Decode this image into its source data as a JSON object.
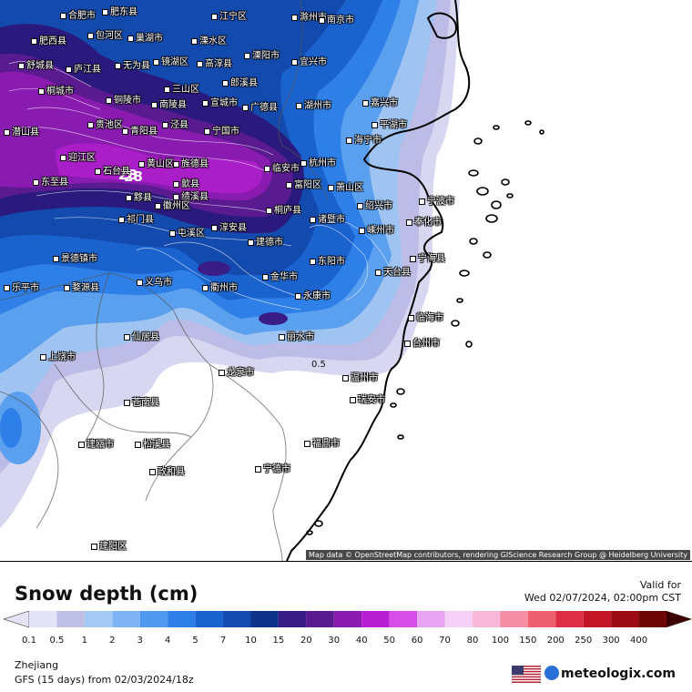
{
  "map": {
    "attribution": "Map data © OpenStreetMap contributors, rendering GIScience Research Group @ Heidelberg University",
    "contour_labels": [
      "28",
      "28",
      "0.5"
    ],
    "cities": [
      {
        "name": "合肥市"
      },
      {
        "name": "肥东县"
      },
      {
        "name": "滁州市"
      },
      {
        "name": "南京市"
      },
      {
        "name": "江宁区"
      },
      {
        "name": "肥西县"
      },
      {
        "name": "包河区"
      },
      {
        "name": "巢湖市"
      },
      {
        "name": "溧水区"
      },
      {
        "name": "溧阳市"
      },
      {
        "name": "舒城县"
      },
      {
        "name": "庐江县"
      },
      {
        "name": "无为县"
      },
      {
        "name": "镜湖区"
      },
      {
        "name": "高淳县"
      },
      {
        "name": "宜兴市"
      },
      {
        "name": "桐城市"
      },
      {
        "name": "铜陵市"
      },
      {
        "name": "三山区"
      },
      {
        "name": "郎溪县"
      },
      {
        "name": "南陵县"
      },
      {
        "name": "宣城市"
      },
      {
        "name": "广德县"
      },
      {
        "name": "湖州市"
      },
      {
        "name": "嘉兴市"
      },
      {
        "name": "潜山县"
      },
      {
        "name": "贵池区"
      },
      {
        "name": "青阳县"
      },
      {
        "name": "泾县"
      },
      {
        "name": "宁国市"
      },
      {
        "name": "杭州市"
      },
      {
        "name": "海宁市"
      },
      {
        "name": "平湖市"
      },
      {
        "name": "迎江区"
      },
      {
        "name": "石台县"
      },
      {
        "name": "黄山区"
      },
      {
        "name": "旌德县"
      },
      {
        "name": "临安市"
      },
      {
        "name": "萧山区"
      },
      {
        "name": "东至县"
      },
      {
        "name": "黟县"
      },
      {
        "name": "祁门县"
      },
      {
        "name": "歙县"
      },
      {
        "name": "绩溪县"
      },
      {
        "name": "富阳区"
      },
      {
        "name": "绍兴市"
      },
      {
        "name": "宁波市"
      },
      {
        "name": "徽州区"
      },
      {
        "name": "屯溪区"
      },
      {
        "name": "淳安县"
      },
      {
        "name": "桐庐县"
      },
      {
        "name": "诸暨市"
      },
      {
        "name": "嵊州市"
      },
      {
        "name": "奉化市"
      },
      {
        "name": "景德镇市"
      },
      {
        "name": "建德市"
      },
      {
        "name": "东阳市"
      },
      {
        "name": "宁海县"
      },
      {
        "name": "天台县"
      },
      {
        "name": "乐平市"
      },
      {
        "name": "婺源县"
      },
      {
        "name": "衢州市"
      },
      {
        "name": "金华市"
      },
      {
        "name": "义乌市"
      },
      {
        "name": "永康市"
      },
      {
        "name": "仙居县"
      },
      {
        "name": "临海市"
      },
      {
        "name": "丽水市"
      },
      {
        "name": "上饶市"
      },
      {
        "name": "龙泉市"
      },
      {
        "name": "温州市"
      },
      {
        "name": "瑞安市"
      },
      {
        "name": "苍南县"
      },
      {
        "name": "建瓯市"
      },
      {
        "name": "松溪县"
      },
      {
        "name": "福鼎市"
      },
      {
        "name": "宁德市"
      },
      {
        "name": "政和县"
      },
      {
        "name": "建阳区"
      },
      {
        "name": "台州市"
      }
    ]
  },
  "legend": {
    "title": "Snow depth (cm)",
    "valid_label": "Valid for",
    "valid_time": "Wed 02/07/2024, 02:00pm CST",
    "levels": [
      "0.1",
      "0.5",
      "1",
      "2",
      "3",
      "4",
      "5",
      "7",
      "10",
      "15",
      "20",
      "30",
      "40",
      "50",
      "60",
      "70",
      "80",
      "100",
      "150",
      "200",
      "250",
      "300",
      "400"
    ],
    "colors": [
      "#e4e4f6",
      "#bfbfe6",
      "#a6c8f4",
      "#7fb4f4",
      "#4f99ef",
      "#2e80e8",
      "#1a63cf",
      "#124aae",
      "#0d3288",
      "#3a1c86",
      "#5a1a90",
      "#8a1bb0",
      "#b71fd0",
      "#d84ee8",
      "#e8a4f2",
      "#f5cff7",
      "#f8b7d6",
      "#f58da4",
      "#ec5f6e",
      "#dc2f45",
      "#c21525",
      "#9b0a12",
      "#6e0606",
      "#3d0000"
    ],
    "region": "Zhejiang",
    "model": "GFS (15 days) from  02/03/2024/18z",
    "brand": "meteologix.com"
  }
}
